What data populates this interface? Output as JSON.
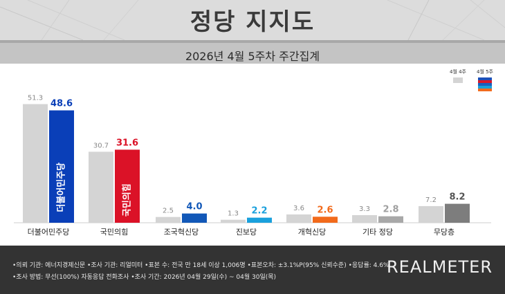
{
  "header": {
    "title": "정당 지지도",
    "subtitle": "2026년 4월 5주차 주간집계"
  },
  "legend": {
    "prev_label": "4월 4주",
    "curr_label": "4월 5주",
    "prev_color": "#d4d4d4",
    "curr_colors": [
      "#1c4fb8",
      "#d8182a",
      "#1a5fbf",
      "#1ba0d8",
      "#f26b1d"
    ]
  },
  "chart_data": {
    "type": "bar",
    "title": "정당 지지도",
    "subtitle": "2026년 4월 5주차 주간집계",
    "categories": [
      "더불어민주당",
      "국민의힘",
      "조국혁신당",
      "진보당",
      "개혁신당",
      "기타 정당",
      "무당층"
    ],
    "series": [
      {
        "name": "4월 4주",
        "values": [
          51.3,
          30.7,
          2.5,
          1.3,
          3.6,
          3.3,
          7.2
        ],
        "color": "#d4d4d4"
      },
      {
        "name": "4월 5주",
        "values": [
          48.6,
          31.6,
          4.0,
          2.2,
          2.6,
          2.8,
          8.2
        ],
        "colors": [
          "#0a3fb8",
          "#db1227",
          "#1258b8",
          "#1aa0dc",
          "#f26a1b",
          "#a8a8a8",
          "#7d7d7d"
        ],
        "label_colors": [
          "#0a3fb8",
          "#db1227",
          "#1258b8",
          "#1aa0dc",
          "#f26a1b",
          "#a0a0a0",
          "#555555"
        ]
      }
    ],
    "ylim": [
      0,
      60
    ],
    "grid": false,
    "legend_position": "top-right",
    "bar_logos": [
      {
        "category": "더불어민주당",
        "text": "더불어민주당"
      },
      {
        "category": "국민의힘",
        "text": "국민의힘"
      }
    ]
  },
  "footer": {
    "line1": "•의뢰 기관: 에너지경제신문  •조사 기관: 리얼미터  •표본 수: 전국 만 18세 이상 1,006명  •표본오차: ±3.1%P(95% 신뢰수준)  •응답률: 4.6%",
    "line2": "•조사 방법: 무선(100%) 자동응답 전화조사  •조사 기간: 2026년 04월 29일(수) ~ 04월 30일(목)",
    "logo": "REALMETER"
  }
}
